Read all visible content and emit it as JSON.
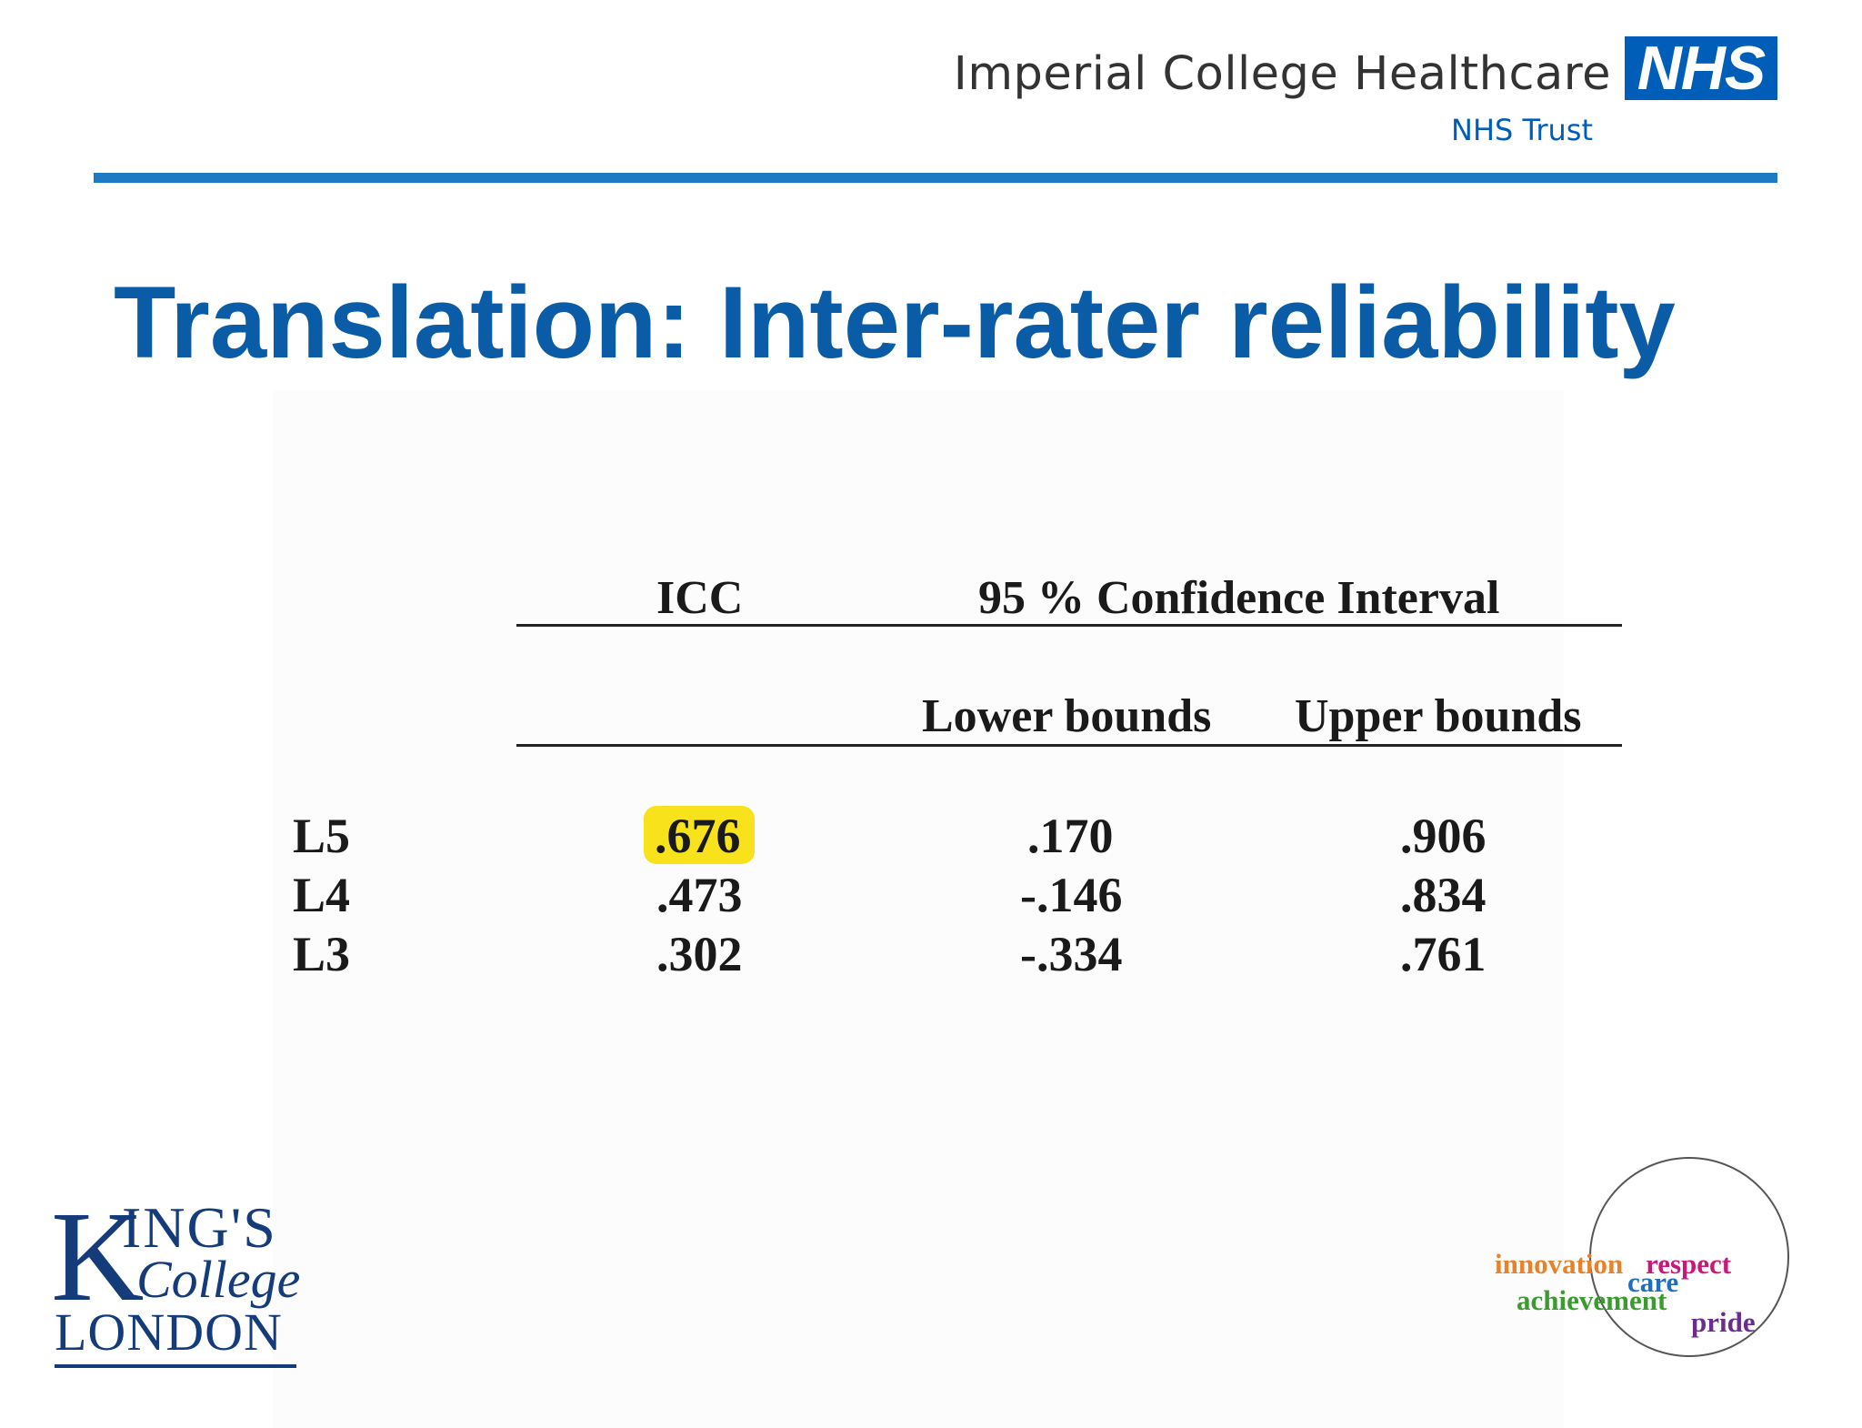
{
  "header": {
    "trust_name": "Imperial College Healthcare",
    "nhs_badge": "NHS",
    "trust_subtitle": "NHS Trust"
  },
  "slide": {
    "title": "Translation: Inter-rater reliability"
  },
  "table": {
    "col_icc": "ICC",
    "col_ci": "95 % Confidence Interval",
    "col_lower": "Lower bounds",
    "col_upper": "Upper bounds",
    "highlighted_cell": ".676",
    "rows": [
      {
        "level": "L5",
        "icc": ".676",
        "lower": ".170",
        "upper": ".906"
      },
      {
        "level": "L4",
        "icc": ".473",
        "lower": "-.146",
        "upper": ".834"
      },
      {
        "level": "L3",
        "icc": ".302",
        "lower": "-.334",
        "upper": ".761"
      }
    ]
  },
  "footer": {
    "kcl_logo": {
      "k": "K",
      "ings": "ING'S",
      "college": "College",
      "london": "LONDON"
    },
    "values_logo": {
      "innovation": "innovation",
      "respect": "respect",
      "care": "care",
      "achievement": "achievement",
      "pride": "pride"
    }
  },
  "colors": {
    "nhs_blue": "#005eb8",
    "title_blue": "#0a5ca6",
    "highlight_yellow": "#f7e21b",
    "kcl_navy": "#153c7a"
  }
}
